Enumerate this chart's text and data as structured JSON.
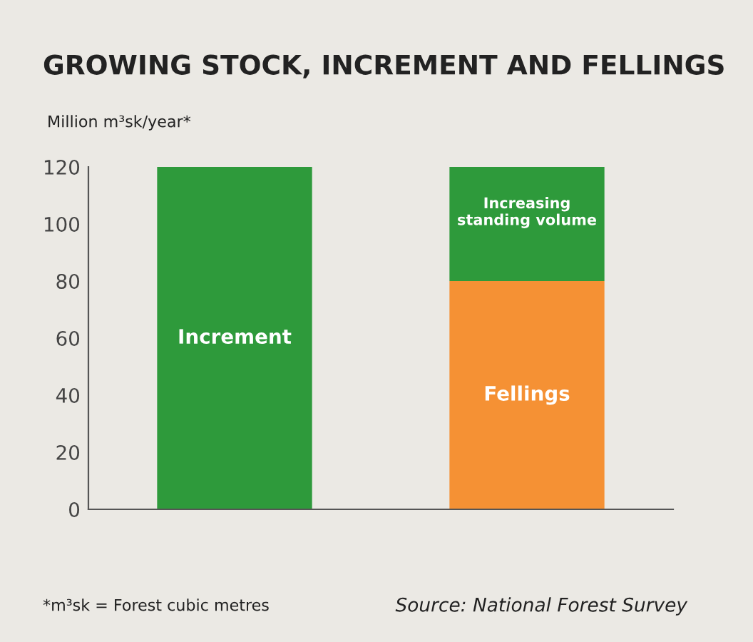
{
  "chart_data": {
    "type": "bar",
    "title": "GROWING STOCK, INCREMENT AND FELLINGS",
    "ylabel": "Million m³sk/year*",
    "categories": [
      null,
      null
    ],
    "stacked": true,
    "series": [
      {
        "name": "Increment",
        "color": "#2e9a3b",
        "values": [
          120,
          null
        ]
      },
      {
        "name": "Fellings",
        "color": "#f59134",
        "values": [
          null,
          80
        ]
      },
      {
        "name": "Increasing\nstanding volume",
        "color": "#2e9a3b",
        "values": [
          null,
          40
        ]
      }
    ],
    "ylim": [
      0,
      120
    ],
    "yticks": [
      0,
      20,
      40,
      60,
      80,
      100,
      120
    ],
    "tick_labels": "y",
    "grid": false,
    "legend": false,
    "annotations": [
      "*m³sk = Forest cubic metres",
      "Source: National Forest Survey"
    ]
  }
}
